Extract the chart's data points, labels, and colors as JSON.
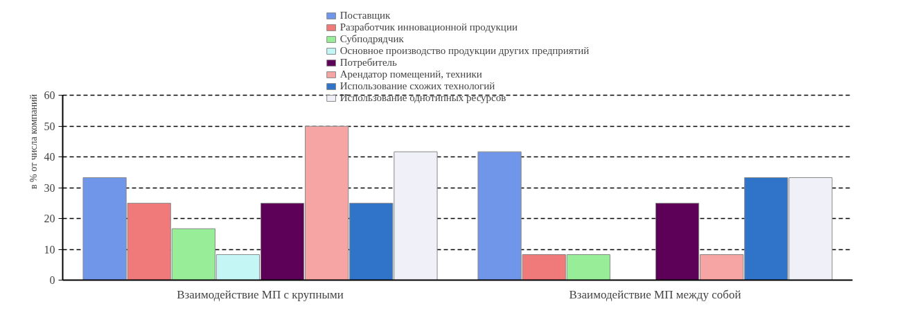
{
  "chart_data": {
    "type": "bar",
    "ylabel": "в % от числа компаний",
    "categories": [
      "Взаимодействие МП с крупными",
      "Взаимодействие МП между собой"
    ],
    "series": [
      {
        "name": "Поставщик",
        "color": "#6f96e8",
        "values": [
          33.3,
          41.7
        ]
      },
      {
        "name": "Разработчик инновационной продукции",
        "color": "#f07a7a",
        "values": [
          25,
          8.3
        ]
      },
      {
        "name": "Субподрядчик",
        "color": "#98ee98",
        "values": [
          16.7,
          8.3
        ]
      },
      {
        "name": "Основное производство продукции других предприятий",
        "color": "#c4f6f6",
        "values": [
          8.3,
          null
        ]
      },
      {
        "name": "Потребитель",
        "color": "#5c0058",
        "values": [
          25,
          25
        ]
      },
      {
        "name": "Арендатор помещений, техники",
        "color": "#f6a4a4",
        "values": [
          50,
          8.3
        ]
      },
      {
        "name": "Использование схожих технологий",
        "color": "#2f74c8",
        "values": [
          25,
          33.3
        ]
      },
      {
        "name": "Использование однотипных ресурсов",
        "color": "#f0f0f8",
        "values": [
          41.7,
          33.3
        ]
      }
    ],
    "ylim": [
      0,
      60
    ],
    "yticks": [
      0,
      10,
      20,
      30,
      40,
      50,
      60
    ],
    "grid": "y",
    "legend": "top"
  }
}
